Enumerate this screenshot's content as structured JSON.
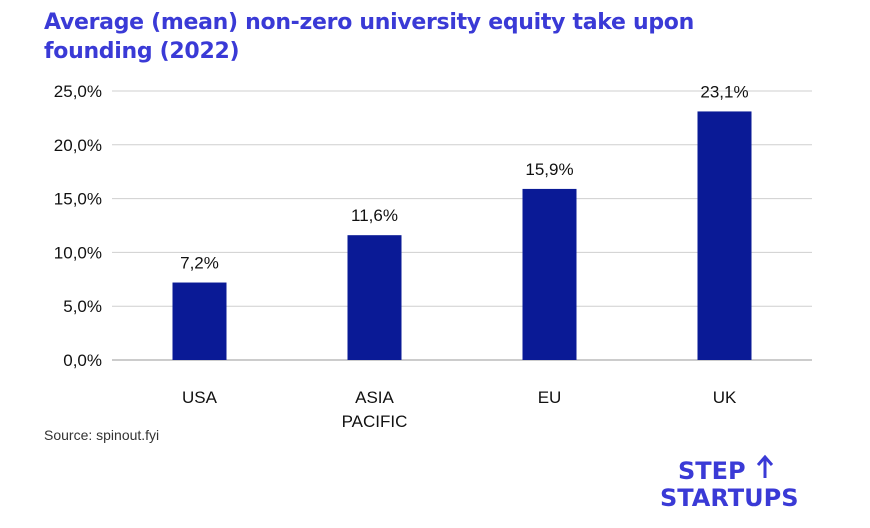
{
  "title": "Average (mean) non-zero university equity take upon founding (2022)",
  "source": "Source: spinout.fyi",
  "logo": {
    "line1": "STEP",
    "line2": "STARTUPS",
    "color": "#3a3ad6"
  },
  "colors": {
    "bar": "#0a1a96",
    "grid": "#cfcfcf",
    "title": "#3a3ad6"
  },
  "chart_data": {
    "type": "bar",
    "title": "Average (mean) non-zero university equity take upon founding (2022)",
    "categories": [
      "USA",
      "ASIA PACIFIC",
      "EU",
      "UK"
    ],
    "category_lines": [
      [
        "USA"
      ],
      [
        "ASIA",
        "PACIFIC"
      ],
      [
        "EU"
      ],
      [
        "UK"
      ]
    ],
    "values": [
      7.2,
      11.6,
      15.9,
      23.1
    ],
    "value_labels": [
      "7,2%",
      "11,6%",
      "15,9%",
      "23,1%"
    ],
    "ylim": [
      0,
      25
    ],
    "yticks": [
      0,
      5,
      10,
      15,
      20,
      25
    ],
    "ytick_labels": [
      "0,0%",
      "5,0%",
      "10,0%",
      "15,0%",
      "20,0%",
      "25,0%"
    ],
    "xlabel": "",
    "ylabel": "",
    "grid": true,
    "legend": "none"
  }
}
